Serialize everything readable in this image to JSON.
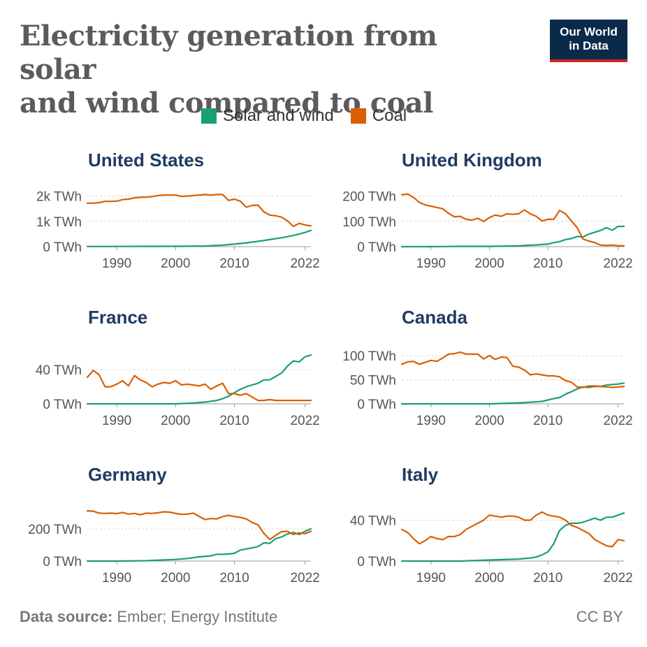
{
  "header": {
    "title_line1": "Electricity generation from solar",
    "title_line2": "and wind compared to coal",
    "logo_line1": "Our World",
    "logo_line2": "in Data"
  },
  "legend": [
    {
      "label": "Solar and wind",
      "color": "#1a9e77"
    },
    {
      "label": "Coal",
      "color": "#d95f02"
    }
  ],
  "footer": {
    "source_label": "Data source:",
    "source_text": " Ember; Energy Institute",
    "license": "CC BY"
  },
  "chart_data": [
    {
      "type": "line",
      "title": "United States",
      "unit": "TWh",
      "x_ticks": [
        "1990",
        "2000",
        "2010",
        "2022"
      ],
      "y_ticks": [
        {
          "value": 0,
          "label": "0 TWh"
        },
        {
          "value": 1000,
          "label": "1k TWh"
        },
        {
          "value": 2000,
          "label": "2k TWh"
        }
      ],
      "ylim": [
        0,
        2100
      ],
      "series": [
        {
          "name": "Solar and wind",
          "x": [
            1985,
            1990,
            1995,
            2000,
            2005,
            2008,
            2010,
            2012,
            2014,
            2016,
            2018,
            2020,
            2022,
            2023
          ],
          "values": [
            5,
            8,
            10,
            15,
            25,
            60,
            100,
            150,
            210,
            280,
            350,
            440,
            560,
            640
          ]
        },
        {
          "name": "Coal",
          "x": [
            1985,
            1986,
            1987,
            1988,
            1989,
            1990,
            1991,
            1992,
            1993,
            1994,
            1995,
            1996,
            1997,
            1998,
            1999,
            2000,
            2001,
            2002,
            2003,
            2004,
            2005,
            2006,
            2007,
            2008,
            2009,
            2010,
            2011,
            2012,
            2013,
            2014,
            2015,
            2016,
            2017,
            2018,
            2019,
            2020,
            2021,
            2022,
            2023
          ],
          "values": [
            1720,
            1720,
            1740,
            1790,
            1790,
            1800,
            1860,
            1880,
            1930,
            1950,
            1960,
            1980,
            2020,
            2040,
            2040,
            2040,
            1990,
            2000,
            2020,
            2040,
            2060,
            2040,
            2060,
            2060,
            1830,
            1880,
            1800,
            1560,
            1630,
            1640,
            1380,
            1250,
            1220,
            1170,
            1020,
            800,
            920,
            860,
            820
          ]
        }
      ]
    },
    {
      "type": "line",
      "title": "United Kingdom",
      "unit": "TWh",
      "x_ticks": [
        "1990",
        "2000",
        "2010",
        "2022"
      ],
      "y_ticks": [
        {
          "value": 0,
          "label": "0 TWh"
        },
        {
          "value": 100,
          "label": "100 TWh"
        },
        {
          "value": 200,
          "label": "200 TWh"
        }
      ],
      "ylim": [
        0,
        210
      ],
      "series": [
        {
          "name": "Solar and wind",
          "x": [
            1985,
            1990,
            1995,
            2000,
            2005,
            2008,
            2010,
            2011,
            2012,
            2013,
            2014,
            2015,
            2016,
            2017,
            2018,
            2019,
            2020,
            2021,
            2022,
            2023
          ],
          "values": [
            0,
            0,
            1,
            1,
            3,
            7,
            10,
            16,
            20,
            28,
            32,
            40,
            38,
            50,
            57,
            64,
            75,
            65,
            80,
            80
          ]
        },
        {
          "name": "Coal",
          "x": [
            1985,
            1986,
            1987,
            1988,
            1989,
            1990,
            1991,
            1992,
            1993,
            1994,
            1995,
            1996,
            1997,
            1998,
            1999,
            2000,
            2001,
            2002,
            2003,
            2004,
            2005,
            2006,
            2007,
            2008,
            2009,
            2010,
            2011,
            2012,
            2013,
            2014,
            2015,
            2016,
            2017,
            2018,
            2019,
            2020,
            2021,
            2022,
            2023
          ],
          "values": [
            205,
            208,
            195,
            175,
            165,
            160,
            155,
            150,
            132,
            118,
            120,
            108,
            105,
            112,
            100,
            115,
            125,
            120,
            130,
            128,
            130,
            145,
            130,
            120,
            102,
            108,
            108,
            143,
            130,
            102,
            75,
            30,
            22,
            16,
            6,
            5,
            6,
            4,
            3
          ]
        }
      ]
    },
    {
      "type": "line",
      "title": "France",
      "unit": "TWh",
      "x_ticks": [
        "1990",
        "2000",
        "2010",
        "2022"
      ],
      "y_ticks": [
        {
          "value": 0,
          "label": "0 TWh"
        },
        {
          "value": 40,
          "label": "40 TWh"
        }
      ],
      "ylim": [
        0,
        62
      ],
      "series": [
        {
          "name": "Solar and wind",
          "x": [
            1985,
            1990,
            1995,
            2000,
            2003,
            2005,
            2006,
            2007,
            2008,
            2009,
            2010,
            2011,
            2012,
            2013,
            2014,
            2015,
            2016,
            2017,
            2018,
            2019,
            2020,
            2021,
            2022,
            2023
          ],
          "values": [
            0,
            0,
            0,
            0,
            1,
            2,
            3,
            4,
            6,
            9,
            13,
            17,
            20,
            22,
            24,
            28,
            28,
            32,
            36,
            44,
            50,
            49,
            55,
            57
          ]
        },
        {
          "name": "Coal",
          "x": [
            1985,
            1986,
            1987,
            1988,
            1989,
            1990,
            1991,
            1992,
            1993,
            1994,
            1995,
            1996,
            1997,
            1998,
            1999,
            2000,
            2001,
            2002,
            2003,
            2004,
            2005,
            2006,
            2007,
            2008,
            2009,
            2010,
            2011,
            2012,
            2013,
            2014,
            2015,
            2016,
            2017,
            2018,
            2019,
            2020,
            2021,
            2022,
            2023
          ],
          "values": [
            31,
            39,
            34,
            20,
            20,
            23,
            27,
            21,
            33,
            28,
            25,
            20,
            23,
            25,
            24,
            27,
            22,
            23,
            22,
            21,
            23,
            17,
            21,
            24,
            12,
            12,
            10,
            12,
            8,
            4,
            4,
            5,
            4,
            4,
            4,
            4,
            4,
            4,
            4
          ]
        }
      ]
    },
    {
      "type": "line",
      "title": "Canada",
      "unit": "TWh",
      "x_ticks": [
        "1990",
        "2000",
        "2010",
        "2022"
      ],
      "y_ticks": [
        {
          "value": 0,
          "label": "0 TWh"
        },
        {
          "value": 50,
          "label": "50 TWh"
        },
        {
          "value": 100,
          "label": "100 TWh"
        }
      ],
      "ylim": [
        0,
        110
      ],
      "series": [
        {
          "name": "Solar and wind",
          "x": [
            1985,
            1990,
            1995,
            2000,
            2005,
            2008,
            2009,
            2010,
            2011,
            2012,
            2013,
            2014,
            2015,
            2016,
            2017,
            2018,
            2019,
            2020,
            2021,
            2022,
            2023
          ],
          "values": [
            0,
            0,
            0,
            0,
            2,
            4,
            5,
            8,
            11,
            13,
            20,
            25,
            31,
            35,
            34,
            36,
            36,
            39,
            40,
            41,
            43
          ]
        },
        {
          "name": "Coal",
          "x": [
            1985,
            1986,
            1987,
            1988,
            1989,
            1990,
            1991,
            1992,
            1993,
            1994,
            1995,
            1996,
            1997,
            1998,
            1999,
            2000,
            2001,
            2002,
            2003,
            2004,
            2005,
            2006,
            2007,
            2008,
            2009,
            2010,
            2011,
            2012,
            2013,
            2014,
            2015,
            2016,
            2017,
            2018,
            2019,
            2020,
            2021,
            2022,
            2023
          ],
          "values": [
            82,
            87,
            88,
            82,
            86,
            90,
            88,
            95,
            103,
            104,
            107,
            103,
            103,
            103,
            93,
            100,
            92,
            97,
            96,
            78,
            76,
            70,
            60,
            62,
            60,
            58,
            58,
            56,
            48,
            45,
            35,
            34,
            37,
            37,
            36,
            35,
            34,
            35,
            36
          ]
        }
      ]
    },
    {
      "type": "line",
      "title": "Germany",
      "unit": "TWh",
      "x_ticks": [
        "1990",
        "2000",
        "2010",
        "2022"
      ],
      "y_ticks": [
        {
          "value": 0,
          "label": "0 TWh"
        },
        {
          "value": 200,
          "label": "200 TWh"
        }
      ],
      "ylim": [
        0,
        330
      ],
      "series": [
        {
          "name": "Solar and wind",
          "x": [
            1985,
            1990,
            1995,
            2000,
            2002,
            2004,
            2006,
            2007,
            2008,
            2009,
            2010,
            2011,
            2012,
            2013,
            2014,
            2015,
            2016,
            2017,
            2018,
            2019,
            2020,
            2021,
            2022,
            2023
          ],
          "values": [
            0,
            0,
            2,
            10,
            16,
            26,
            32,
            42,
            42,
            44,
            48,
            68,
            75,
            82,
            90,
            113,
            110,
            140,
            150,
            168,
            178,
            165,
            185,
            200
          ]
        },
        {
          "name": "Coal",
          "x": [
            1985,
            1986,
            1987,
            1988,
            1989,
            1990,
            1991,
            1992,
            1993,
            1994,
            1995,
            1996,
            1997,
            1998,
            1999,
            2000,
            2001,
            2002,
            2003,
            2004,
            2005,
            2006,
            2007,
            2008,
            2009,
            2010,
            2011,
            2012,
            2013,
            2014,
            2015,
            2016,
            2017,
            2018,
            2019,
            2020,
            2021,
            2022,
            2023
          ],
          "values": [
            312,
            310,
            298,
            296,
            298,
            295,
            302,
            292,
            296,
            288,
            298,
            296,
            300,
            306,
            304,
            296,
            290,
            292,
            298,
            278,
            258,
            264,
            262,
            276,
            284,
            276,
            272,
            262,
            240,
            226,
            173,
            134,
            160,
            183,
            185,
            165,
            175,
            170,
            185
          ]
        }
      ]
    },
    {
      "type": "line",
      "title": "Italy",
      "unit": "TWh",
      "x_ticks": [
        "1990",
        "2000",
        "2010",
        "2022"
      ],
      "y_ticks": [
        {
          "value": 0,
          "label": "0 TWh"
        },
        {
          "value": 40,
          "label": "40 TWh"
        }
      ],
      "ylim": [
        0,
        52
      ],
      "series": [
        {
          "name": "Solar and wind",
          "x": [
            1985,
            1990,
            1995,
            2000,
            2005,
            2007,
            2008,
            2009,
            2010,
            2011,
            2012,
            2013,
            2014,
            2015,
            2016,
            2017,
            2018,
            2019,
            2020,
            2021,
            2022,
            2023
          ],
          "values": [
            0,
            0,
            0,
            1,
            2,
            3,
            4,
            6,
            9,
            17,
            30,
            35,
            37,
            37,
            38,
            40,
            42,
            40,
            43,
            43,
            45,
            47
          ]
        },
        {
          "name": "Coal",
          "x": [
            1985,
            1986,
            1987,
            1988,
            1989,
            1990,
            1991,
            1992,
            1993,
            1994,
            1995,
            1996,
            1997,
            1998,
            1999,
            2000,
            2001,
            2002,
            2003,
            2004,
            2005,
            2006,
            2007,
            2008,
            2009,
            2010,
            2011,
            2012,
            2013,
            2014,
            2015,
            2016,
            2017,
            2018,
            2019,
            2020,
            2021,
            2022,
            2023
          ],
          "values": [
            31,
            28,
            22,
            17,
            20,
            24,
            22,
            21,
            24,
            24,
            26,
            31,
            34,
            37,
            40,
            45,
            44,
            43,
            44,
            44,
            43,
            40,
            40,
            45,
            48,
            45,
            44,
            43,
            40,
            35,
            33,
            30,
            27,
            21,
            18,
            15,
            14,
            21,
            20
          ]
        }
      ]
    }
  ]
}
